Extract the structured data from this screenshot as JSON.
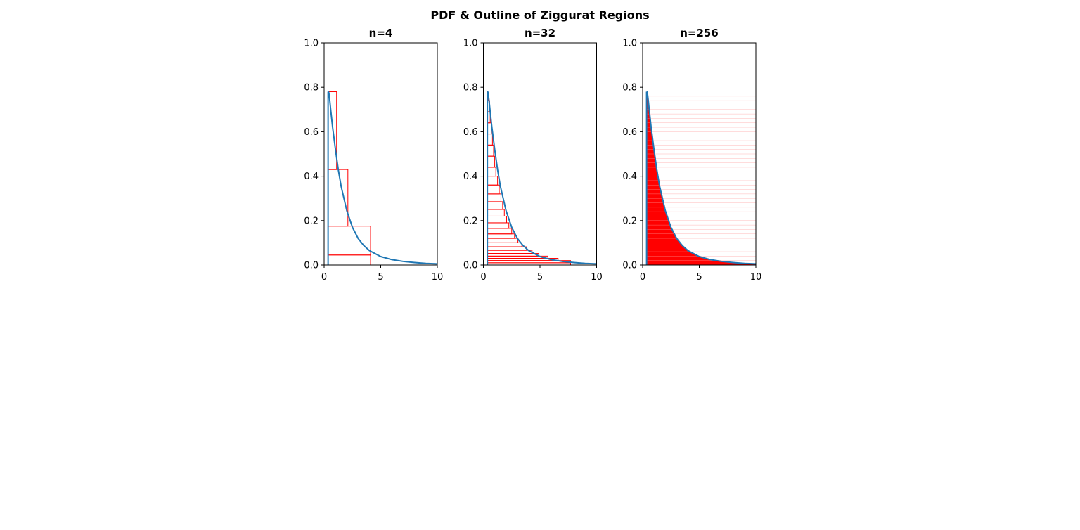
{
  "figure": {
    "title": "PDF & Outline of Ziggurat Regions"
  },
  "colors": {
    "pdf_line": "#1f77b4",
    "region_outline": "#ff0000",
    "axes": "#000000"
  },
  "chart_data": [
    {
      "type": "line",
      "title": "n=4",
      "xlim": [
        0,
        10
      ],
      "ylim": [
        0,
        1.0
      ],
      "xticks": [
        "0",
        "5",
        "10"
      ],
      "yticks": [
        "0.0",
        "0.2",
        "0.4",
        "0.6",
        "0.8",
        "1.0"
      ],
      "grid": false,
      "series": [
        {
          "x": [
            0.35,
            0.38,
            0.42,
            0.5,
            0.6,
            0.75,
            1.0,
            1.25,
            1.5,
            2.0,
            2.5,
            3.0,
            3.5,
            4.0,
            5.0,
            6.0,
            7.0,
            8.0,
            9.0,
            10.0
          ],
          "values": [
            0.78,
            0.78,
            0.775,
            0.74,
            0.69,
            0.62,
            0.52,
            0.43,
            0.355,
            0.245,
            0.17,
            0.12,
            0.088,
            0.065,
            0.038,
            0.024,
            0.016,
            0.011,
            0.007,
            0.005
          ]
        }
      ],
      "regions": {
        "x_left": 0.35,
        "x_right": [
          1.1,
          2.1,
          4.1,
          4.1
        ],
        "y_top": [
          0.78,
          0.43,
          0.175,
          0.045
        ],
        "y_bottom": [
          0.43,
          0.175,
          0.045,
          0.0
        ]
      }
    },
    {
      "type": "line",
      "title": "n=32",
      "xlim": [
        0,
        10
      ],
      "ylim": [
        0,
        1.0
      ],
      "xticks": [
        "0",
        "5",
        "10"
      ],
      "yticks": [
        "0.0",
        "0.2",
        "0.4",
        "0.6",
        "0.8",
        "1.0"
      ],
      "grid": false,
      "series": [
        {
          "x": [
            0.35,
            0.38,
            0.42,
            0.5,
            0.6,
            0.75,
            1.0,
            1.25,
            1.5,
            2.0,
            2.5,
            3.0,
            3.5,
            4.0,
            5.0,
            6.0,
            7.0,
            8.0,
            9.0,
            10.0
          ],
          "values": [
            0.78,
            0.78,
            0.775,
            0.74,
            0.69,
            0.62,
            0.52,
            0.43,
            0.355,
            0.245,
            0.17,
            0.12,
            0.088,
            0.065,
            0.038,
            0.024,
            0.016,
            0.011,
            0.007,
            0.005
          ]
        }
      ],
      "regions": {
        "x_left": 0.35,
        "x_right": [
          0.4,
          0.55,
          0.6,
          0.7,
          0.8,
          0.9,
          1.0,
          1.1,
          1.25,
          1.4,
          1.55,
          1.7,
          1.85,
          2.05,
          2.25,
          2.5,
          2.75,
          3.05,
          3.4,
          3.8,
          4.3,
          4.9,
          5.7,
          6.6,
          7.7,
          7.7
        ],
        "y_top": [
          0.78,
          0.74,
          0.69,
          0.64,
          0.59,
          0.54,
          0.49,
          0.44,
          0.4,
          0.36,
          0.32,
          0.285,
          0.25,
          0.22,
          0.19,
          0.165,
          0.14,
          0.12,
          0.1,
          0.082,
          0.066,
          0.052,
          0.04,
          0.03,
          0.02,
          0.01
        ],
        "y_bottom": [
          0.74,
          0.69,
          0.64,
          0.59,
          0.54,
          0.49,
          0.44,
          0.4,
          0.36,
          0.32,
          0.285,
          0.25,
          0.22,
          0.19,
          0.165,
          0.14,
          0.12,
          0.1,
          0.082,
          0.066,
          0.052,
          0.04,
          0.03,
          0.02,
          0.01,
          0.0
        ]
      }
    },
    {
      "type": "line",
      "title": "n=256",
      "xlim": [
        0,
        10
      ],
      "ylim": [
        0,
        1.0
      ],
      "xticks": [
        "0",
        "5",
        "10"
      ],
      "yticks": [
        "0.0",
        "0.2",
        "0.4",
        "0.6",
        "0.8",
        "1.0"
      ],
      "grid": false,
      "series": [
        {
          "x": [
            0.35,
            0.38,
            0.42,
            0.5,
            0.6,
            0.75,
            1.0,
            1.25,
            1.5,
            2.0,
            2.5,
            3.0,
            3.5,
            4.0,
            5.0,
            6.0,
            7.0,
            8.0,
            9.0,
            10.0
          ],
          "values": [
            0.78,
            0.78,
            0.775,
            0.74,
            0.69,
            0.62,
            0.52,
            0.43,
            0.355,
            0.245,
            0.17,
            0.12,
            0.088,
            0.065,
            0.038,
            0.024,
            0.016,
            0.011,
            0.007,
            0.005
          ]
        }
      ],
      "region_fill": {
        "x_left": 0.35,
        "x_right": 10,
        "y_max": 0.78
      }
    }
  ]
}
